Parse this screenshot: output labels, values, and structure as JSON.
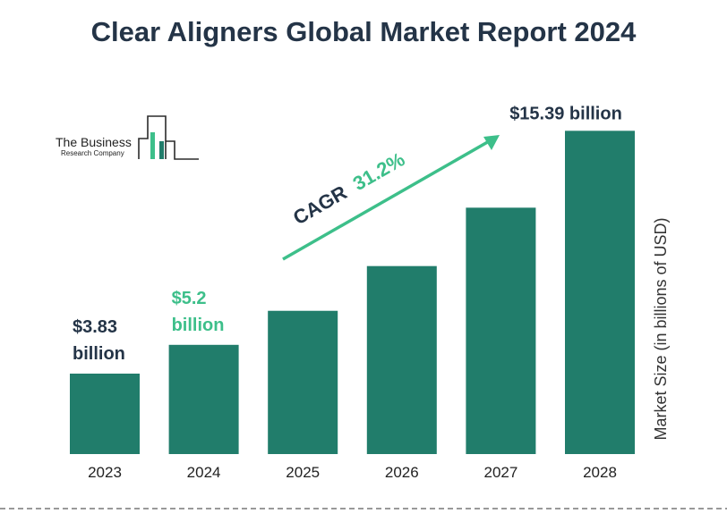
{
  "chart_data": {
    "type": "bar",
    "title": "Clear Aligners Global Market Report 2024",
    "categories": [
      "2023",
      "2024",
      "2025",
      "2026",
      "2027",
      "2028"
    ],
    "values": [
      3.83,
      5.2,
      6.82,
      8.95,
      11.73,
      15.39
    ],
    "ylabel": "Market Size (in billions of USD)",
    "ylim": [
      0,
      16
    ],
    "grid": false,
    "bar_color": "#217d6b",
    "data_labels": [
      {
        "index": 0,
        "line1": "$3.83",
        "line2": "billion",
        "color": "#243447"
      },
      {
        "index": 1,
        "line1": "$5.2",
        "line2": "billion",
        "color": "#3dbf8a"
      },
      {
        "index": 5,
        "line1": "$15.39 billion",
        "line2": "",
        "color": "#243447"
      }
    ],
    "annotation": {
      "prefix": "CAGR",
      "value": "31.2%",
      "prefix_color": "#243447",
      "value_color": "#3dbf8a",
      "arrow_color": "#3dbf8a"
    }
  },
  "logo": {
    "line1": "The Business",
    "line2": "Research Company"
  },
  "colors": {
    "title": "#243447",
    "accent": "#3dbf8a",
    "bar": "#217d6b"
  }
}
